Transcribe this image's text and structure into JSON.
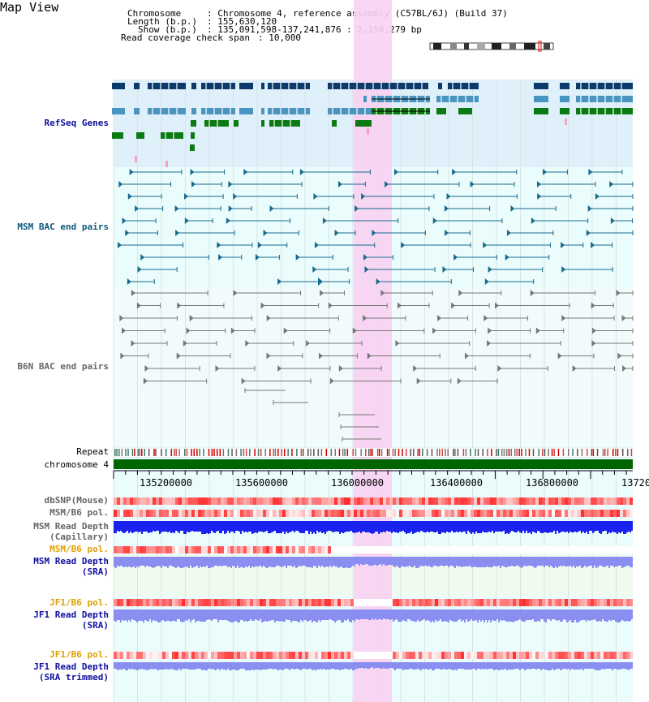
{
  "title": "Map View",
  "info": {
    "chromosome_key": "Chromosome",
    "chromosome_val": ": Chromosome 4, reference assembly (C57BL/6J) (Build 37)",
    "length_key": "Length (b.p.)",
    "length_val": ": 155,630,120",
    "show_key": "Show (b.p.)",
    "show_val": ": 135,091,598-137,241,876 : 2,150,279 bp",
    "coverage_key": "Read coverage check span",
    "coverage_val": ": 10,000"
  },
  "tracks": {
    "refseq": "RefSeq Genes",
    "msm_bac": "MSM BAC end pairs",
    "b6n_bac": "B6N BAC end pairs",
    "repeat": "Repeat",
    "chromosome": "chromosome 4",
    "dbsnp": "dbSNP(Mouse)",
    "msm_b6_pol_1": "MSM/B6 pol.",
    "msm_depth_cap_1": "MSM Read Depth",
    "msm_depth_cap_2": "(Capillary)",
    "msm_b6_pol_2": "MSM/B6 pol.",
    "msm_depth_sra_1": "MSM Read Depth",
    "msm_depth_sra_2": "(SRA)",
    "jf1_b6_pol_1": "JF1/B6 pol.",
    "jf1_depth_sra_1": "JF1 Read Depth",
    "jf1_depth_sra_2": "(SRA)",
    "jf1_b6_pol_2": "JF1/B6 pol.",
    "jf1_depth_trim_1": "JF1 Read Depth",
    "jf1_depth_trim_2": "(SRA trimmed)"
  },
  "axis": {
    "ticks": [
      "135200000",
      "135600000",
      "136000000",
      "136400000",
      "136800000",
      "13720"
    ]
  },
  "colors": {
    "gene_dark": "#0b3a6b",
    "gene_mid": "#4a94c0",
    "gene_green": "#0c7a12",
    "msm_line": "#1a6a8c",
    "b6n_line": "#777777",
    "highlight": "#f8d2f2",
    "chrom": "#006400",
    "depth_blue": "#1a22ee",
    "depth_light": "#8a8ef0",
    "pol_red": "#e83a3a"
  }
}
